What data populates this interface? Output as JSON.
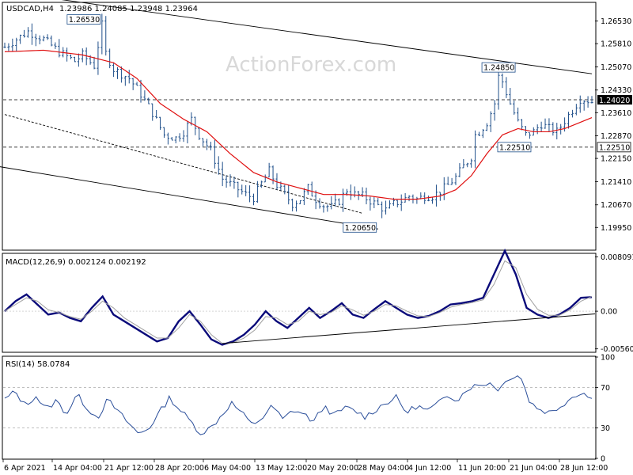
{
  "header": {
    "symbol_tf": "USDCAD,H4",
    "ohlc": "1.23986 1.24085 1.23948 1.23964",
    "watermark": "ActionForex.com"
  },
  "colors": {
    "bars": "#1f4f8a",
    "ma": "#e01010",
    "macd": "#0a0a7a",
    "signal": "#a0a0a0",
    "rsi": "#2a4e9a",
    "levels": "#888888",
    "axis_text": "#000000",
    "label_bg": "#ffffff"
  },
  "chart_data": [
    {
      "type": "candlestick-ohlc",
      "panel": "price",
      "ylim": [
        1.1925,
        1.271
      ],
      "y_ticks": [
        "1.26530",
        "1.25810",
        "1.25070",
        "1.24330",
        "1.23610",
        "1.22870",
        "1.22150",
        "1.21410",
        "1.20670",
        "1.19950"
      ],
      "x_categories": [
        "6 Apr 2021",
        "14 Apr 04:00",
        "21 Apr 12:00",
        "28 Apr 20:00",
        "6 May 04:00",
        "13 May 12:00",
        "20 May 20:00",
        "28 May 04:00",
        "4 Jun 12:00",
        "11 Jun 20:00",
        "21 Jun 04:00",
        "28 Jun 12:00"
      ],
      "price_path": [
        [
          0,
          1.257
        ],
        [
          6,
          1.262
        ],
        [
          10,
          1.2595
        ],
        [
          14,
          1.2555
        ],
        [
          18,
          1.2525
        ],
        [
          20,
          1.2545
        ],
        [
          23,
          1.251
        ],
        [
          25,
          1.264
        ],
        [
          26,
          1.255
        ],
        [
          28,
          1.25
        ],
        [
          32,
          1.247
        ],
        [
          35,
          1.242
        ],
        [
          38,
          1.236
        ],
        [
          41,
          1.229
        ],
        [
          44,
          1.228
        ],
        [
          46,
          1.23
        ],
        [
          48,
          1.234
        ],
        [
          50,
          1.229
        ],
        [
          53,
          1.224
        ],
        [
          56,
          1.215
        ],
        [
          59,
          1.2125
        ],
        [
          62,
          1.21
        ],
        [
          64,
          1.209
        ],
        [
          66,
          1.2135
        ],
        [
          68,
          1.2175
        ],
        [
          70,
          1.213
        ],
        [
          72,
          1.21
        ],
        [
          74,
          1.207
        ],
        [
          76,
          1.2085
        ],
        [
          78,
          1.212
        ],
        [
          80,
          1.2085
        ],
        [
          82,
          1.2065
        ],
        [
          84,
          1.206
        ],
        [
          86,
          1.208
        ],
        [
          88,
          1.2115
        ],
        [
          90,
          1.21
        ],
        [
          92,
          1.2095
        ],
        [
          94,
          1.208
        ],
        [
          96,
          1.2065
        ],
        [
          98,
          1.205
        ],
        [
          100,
          1.207
        ],
        [
          102,
          1.208
        ],
        [
          104,
          1.2095
        ],
        [
          106,
          1.2085
        ],
        [
          108,
          1.2095
        ],
        [
          110,
          1.2095
        ],
        [
          112,
          1.211
        ],
        [
          114,
          1.213
        ],
        [
          116,
          1.2155
        ],
        [
          118,
          1.219
        ],
        [
          120,
          1.222
        ],
        [
          121,
          1.229
        ],
        [
          122,
          1.23
        ],
        [
          124,
          1.233
        ],
        [
          126,
          1.239
        ],
        [
          127,
          1.2475
        ],
        [
          128,
          1.246
        ],
        [
          130,
          1.239
        ],
        [
          132,
          1.233
        ],
        [
          134,
          1.229
        ],
        [
          136,
          1.23
        ],
        [
          138,
          1.2325
        ],
        [
          140,
          1.231
        ],
        [
          142,
          1.23
        ],
        [
          144,
          1.2335
        ],
        [
          146,
          1.237
        ],
        [
          148,
          1.2405
        ],
        [
          150,
          1.24
        ],
        [
          151,
          1.2396
        ]
      ],
      "moving_average_path": [
        [
          0,
          1.2555
        ],
        [
          10,
          1.256
        ],
        [
          20,
          1.2545
        ],
        [
          28,
          1.252
        ],
        [
          34,
          1.247
        ],
        [
          40,
          1.239
        ],
        [
          46,
          1.234
        ],
        [
          52,
          1.23
        ],
        [
          58,
          1.223
        ],
        [
          64,
          1.217
        ],
        [
          70,
          1.214
        ],
        [
          76,
          1.212
        ],
        [
          82,
          1.21
        ],
        [
          88,
          1.21
        ],
        [
          94,
          1.2095
        ],
        [
          100,
          1.2085
        ],
        [
          106,
          1.2085
        ],
        [
          112,
          1.2095
        ],
        [
          116,
          1.2115
        ],
        [
          120,
          1.216
        ],
        [
          124,
          1.223
        ],
        [
          128,
          1.229
        ],
        [
          132,
          1.231
        ],
        [
          136,
          1.23
        ],
        [
          140,
          1.23
        ],
        [
          144,
          1.231
        ],
        [
          148,
          1.233
        ],
        [
          151,
          1.2345
        ]
      ],
      "horizontal_levels": [
        1.2402,
        1.2251
      ],
      "current_price_label": "1.24020",
      "trendlines": [
        {
          "from": [
            -2,
            1.275
          ],
          "to": [
            151,
            1.2485
          ],
          "style": "solid"
        },
        {
          "from": [
            -2,
            1.219
          ],
          "to": [
            96,
            1.199
          ],
          "style": "solid"
        },
        {
          "from": [
            0,
            1.2355
          ],
          "to": [
            92,
            1.204
          ],
          "style": "dashed"
        }
      ],
      "annotations": [
        {
          "label": "1.26530",
          "x": 25,
          "y": 1.2653
        },
        {
          "label": "1.24850",
          "x": 127,
          "y": 1.2485
        },
        {
          "label": "1.22510",
          "x": 128,
          "y": 1.2251
        },
        {
          "label": "1.22510",
          "axis_label": true,
          "y": 1.2251
        },
        {
          "label": "1.20650",
          "x": 96,
          "y": 1.2005
        }
      ]
    },
    {
      "type": "line",
      "panel": "macd",
      "title": "MACD(12,26,9) 0.002124 0.002192",
      "ylim": [
        -0.006,
        0.0085
      ],
      "y_ticks": [
        "0.008091",
        "0.00",
        "-0.005608"
      ],
      "series": [
        {
          "name": "MACD",
          "values": [
            0.0,
            0.0015,
            0.0025,
            0.001,
            -0.0005,
            -0.0002,
            -0.001,
            -0.0015,
            0.0005,
            0.0022,
            -0.0005,
            -0.0015,
            -0.0025,
            -0.0035,
            -0.0045,
            -0.004,
            -0.0015,
            0.0,
            -0.002,
            -0.0042,
            -0.005,
            -0.0045,
            -0.0035,
            -0.002,
            0.0,
            -0.0015,
            -0.0025,
            -0.001,
            0.0005,
            -0.001,
            0.0,
            0.0012,
            -0.0005,
            -0.001,
            0.0003,
            0.0015,
            0.0005,
            -0.0005,
            -0.001,
            -0.0007,
            0.0,
            0.001,
            0.0012,
            0.0015,
            0.002,
            0.0055,
            0.009,
            0.0055,
            0.0005,
            -0.0005,
            -0.001,
            -0.0005,
            0.0005,
            0.002,
            0.0021
          ]
        },
        {
          "name": "Signal",
          "values": [
            0.0,
            0.001,
            0.002,
            0.0015,
            0.0002,
            -0.0002,
            -0.0008,
            -0.0012,
            0.0,
            0.0015,
            0.0005,
            -0.001,
            -0.002,
            -0.003,
            -0.004,
            -0.004,
            -0.0025,
            -0.0005,
            -0.0015,
            -0.0035,
            -0.0048,
            -0.0047,
            -0.004,
            -0.0028,
            -0.0008,
            -0.001,
            -0.002,
            -0.0015,
            0.0,
            -0.0005,
            -0.0002,
            0.0008,
            0.0002,
            -0.0006,
            0.0,
            0.001,
            0.0008,
            0.0,
            -0.0007,
            -0.0008,
            -0.0002,
            0.0006,
            0.001,
            0.0013,
            0.0017,
            0.004,
            0.0075,
            0.0065,
            0.0025,
            0.0003,
            -0.0006,
            -0.0006,
            0.0002,
            0.0015,
            0.0022
          ]
        }
      ],
      "trendline": {
        "from": [
          0.37,
          -0.0048
        ],
        "to": [
          1.0,
          -0.0004
        ]
      }
    },
    {
      "type": "line",
      "panel": "rsi",
      "title": "RSI(14) 58.0784",
      "ylim": [
        0,
        100
      ],
      "y_ticks": [
        "100",
        "70",
        "30",
        "0"
      ],
      "levels": [
        70,
        30
      ],
      "series": [
        {
          "name": "RSI",
          "values": [
            58,
            66,
            52,
            62,
            48,
            57,
            44,
            63,
            50,
            40,
            58,
            46,
            35,
            24,
            30,
            45,
            60,
            48,
            37,
            25,
            30,
            42,
            55,
            45,
            33,
            40,
            52,
            38,
            48,
            44,
            36,
            52,
            42,
            50,
            47,
            41,
            48,
            55,
            60,
            45,
            52,
            47,
            53,
            63,
            58,
            70,
            72,
            75,
            68,
            80,
            83,
            55,
            48,
            45,
            52,
            60,
            66,
            58
          ]
        }
      ]
    }
  ]
}
